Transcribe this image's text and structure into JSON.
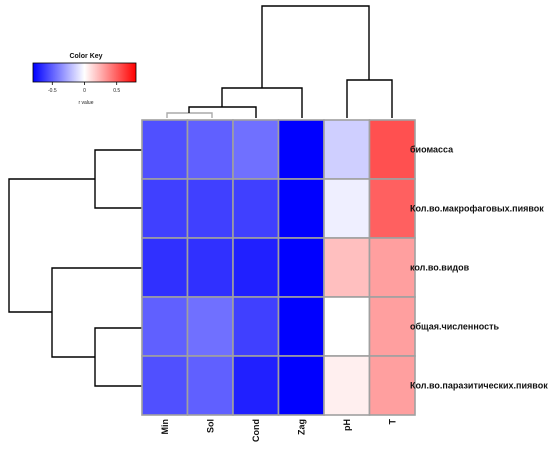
{
  "chart_data": {
    "type": "heatmap",
    "rows": [
      "биомасса",
      "Кол.во.макрофаговых.пиявок",
      "кол.во.видов",
      "общая.численность",
      "Кол.во.паразитических.пиявок"
    ],
    "columns": [
      "Min",
      "Sol",
      "Cond",
      "Zag",
      "pH",
      "T"
    ],
    "values": [
      [
        -0.55,
        -0.5,
        -0.45,
        -0.85,
        -0.15,
        0.55
      ],
      [
        -0.6,
        -0.6,
        -0.6,
        -0.85,
        -0.05,
        0.5
      ],
      [
        -0.65,
        -0.65,
        -0.7,
        -0.9,
        0.2,
        0.3
      ],
      [
        -0.5,
        -0.45,
        -0.6,
        -0.85,
        0.0,
        0.3
      ],
      [
        -0.55,
        -0.5,
        -0.7,
        -0.8,
        0.05,
        0.3
      ]
    ],
    "color_key": {
      "title": "Color Key",
      "label": "r value",
      "ticks": [
        "-0.5",
        "0",
        "0.5"
      ],
      "range": [
        -0.8,
        0.8
      ],
      "colors": {
        "low": "#0000ff",
        "mid": "#ffffff",
        "high": "#ff0000"
      }
    },
    "column_dendrogram": true,
    "row_dendrogram": true,
    "grid_color": "#a0a0a0"
  }
}
